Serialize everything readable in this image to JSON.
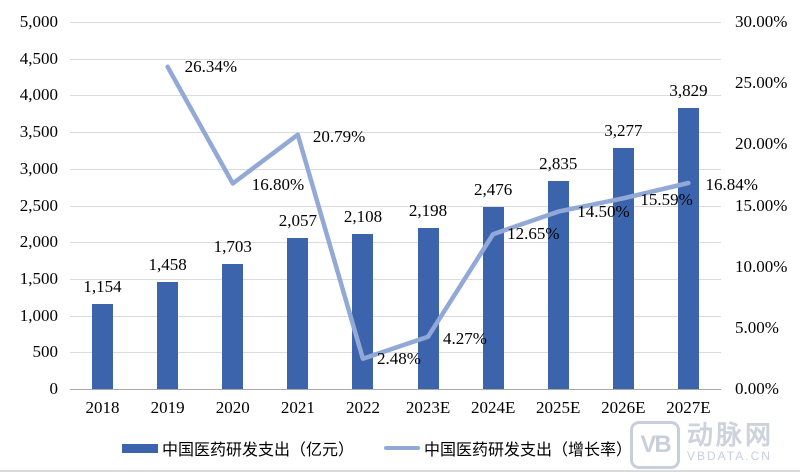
{
  "chart_data": {
    "type": "bar+line",
    "categories": [
      "2018",
      "2019",
      "2020",
      "2021",
      "2022",
      "2023E",
      "2024E",
      "2025E",
      "2026E",
      "2027E"
    ],
    "series": [
      {
        "name": "中国医药研发支出（亿元）",
        "type": "bar",
        "axis": "left",
        "color": "#3b64ac",
        "values": [
          1154,
          1458,
          1703,
          2057,
          2108,
          2198,
          2476,
          2835,
          3277,
          3829
        ],
        "labels": [
          "1,154",
          "1,458",
          "1,703",
          "2,057",
          "2,108",
          "2,198",
          "2,476",
          "2,835",
          "3,277",
          "3,829"
        ]
      },
      {
        "name": "中国医药研发支出（增长率）",
        "type": "line",
        "axis": "right",
        "color": "#92a9d8",
        "values": [
          null,
          26.34,
          16.8,
          20.79,
          2.48,
          4.27,
          12.65,
          14.5,
          15.59,
          16.84
        ],
        "labels": [
          null,
          "26.34%",
          "16.80%",
          "20.79%",
          "2.48%",
          "4.27%",
          "12.65%",
          "14.50%",
          "15.59%",
          "16.84%"
        ]
      }
    ],
    "left_axis": {
      "min": 0,
      "max": 5000,
      "step": 500,
      "tick_labels": [
        "0",
        "500",
        "1,000",
        "1,500",
        "2,000",
        "2,500",
        "3,000",
        "3,500",
        "4,000",
        "4,500",
        "5,000"
      ]
    },
    "right_axis": {
      "min": 0,
      "max": 30,
      "step": 5,
      "tick_labels": [
        "0.00%",
        "5.00%",
        "10.00%",
        "15.00%",
        "20.00%",
        "25.00%",
        "30.00%"
      ]
    },
    "grid": true,
    "legend_position": "bottom",
    "title": ""
  },
  "palette": {
    "bar": "#3b64ac",
    "line": "#92a9d8",
    "gridline": "#dcdcdc",
    "axisline": "#a9a9a9",
    "text": "#000000",
    "watermark": "#c9cedb"
  },
  "watermark": {
    "logo": "VB",
    "brand": "动脉网",
    "site": "VBDATA.CN"
  }
}
